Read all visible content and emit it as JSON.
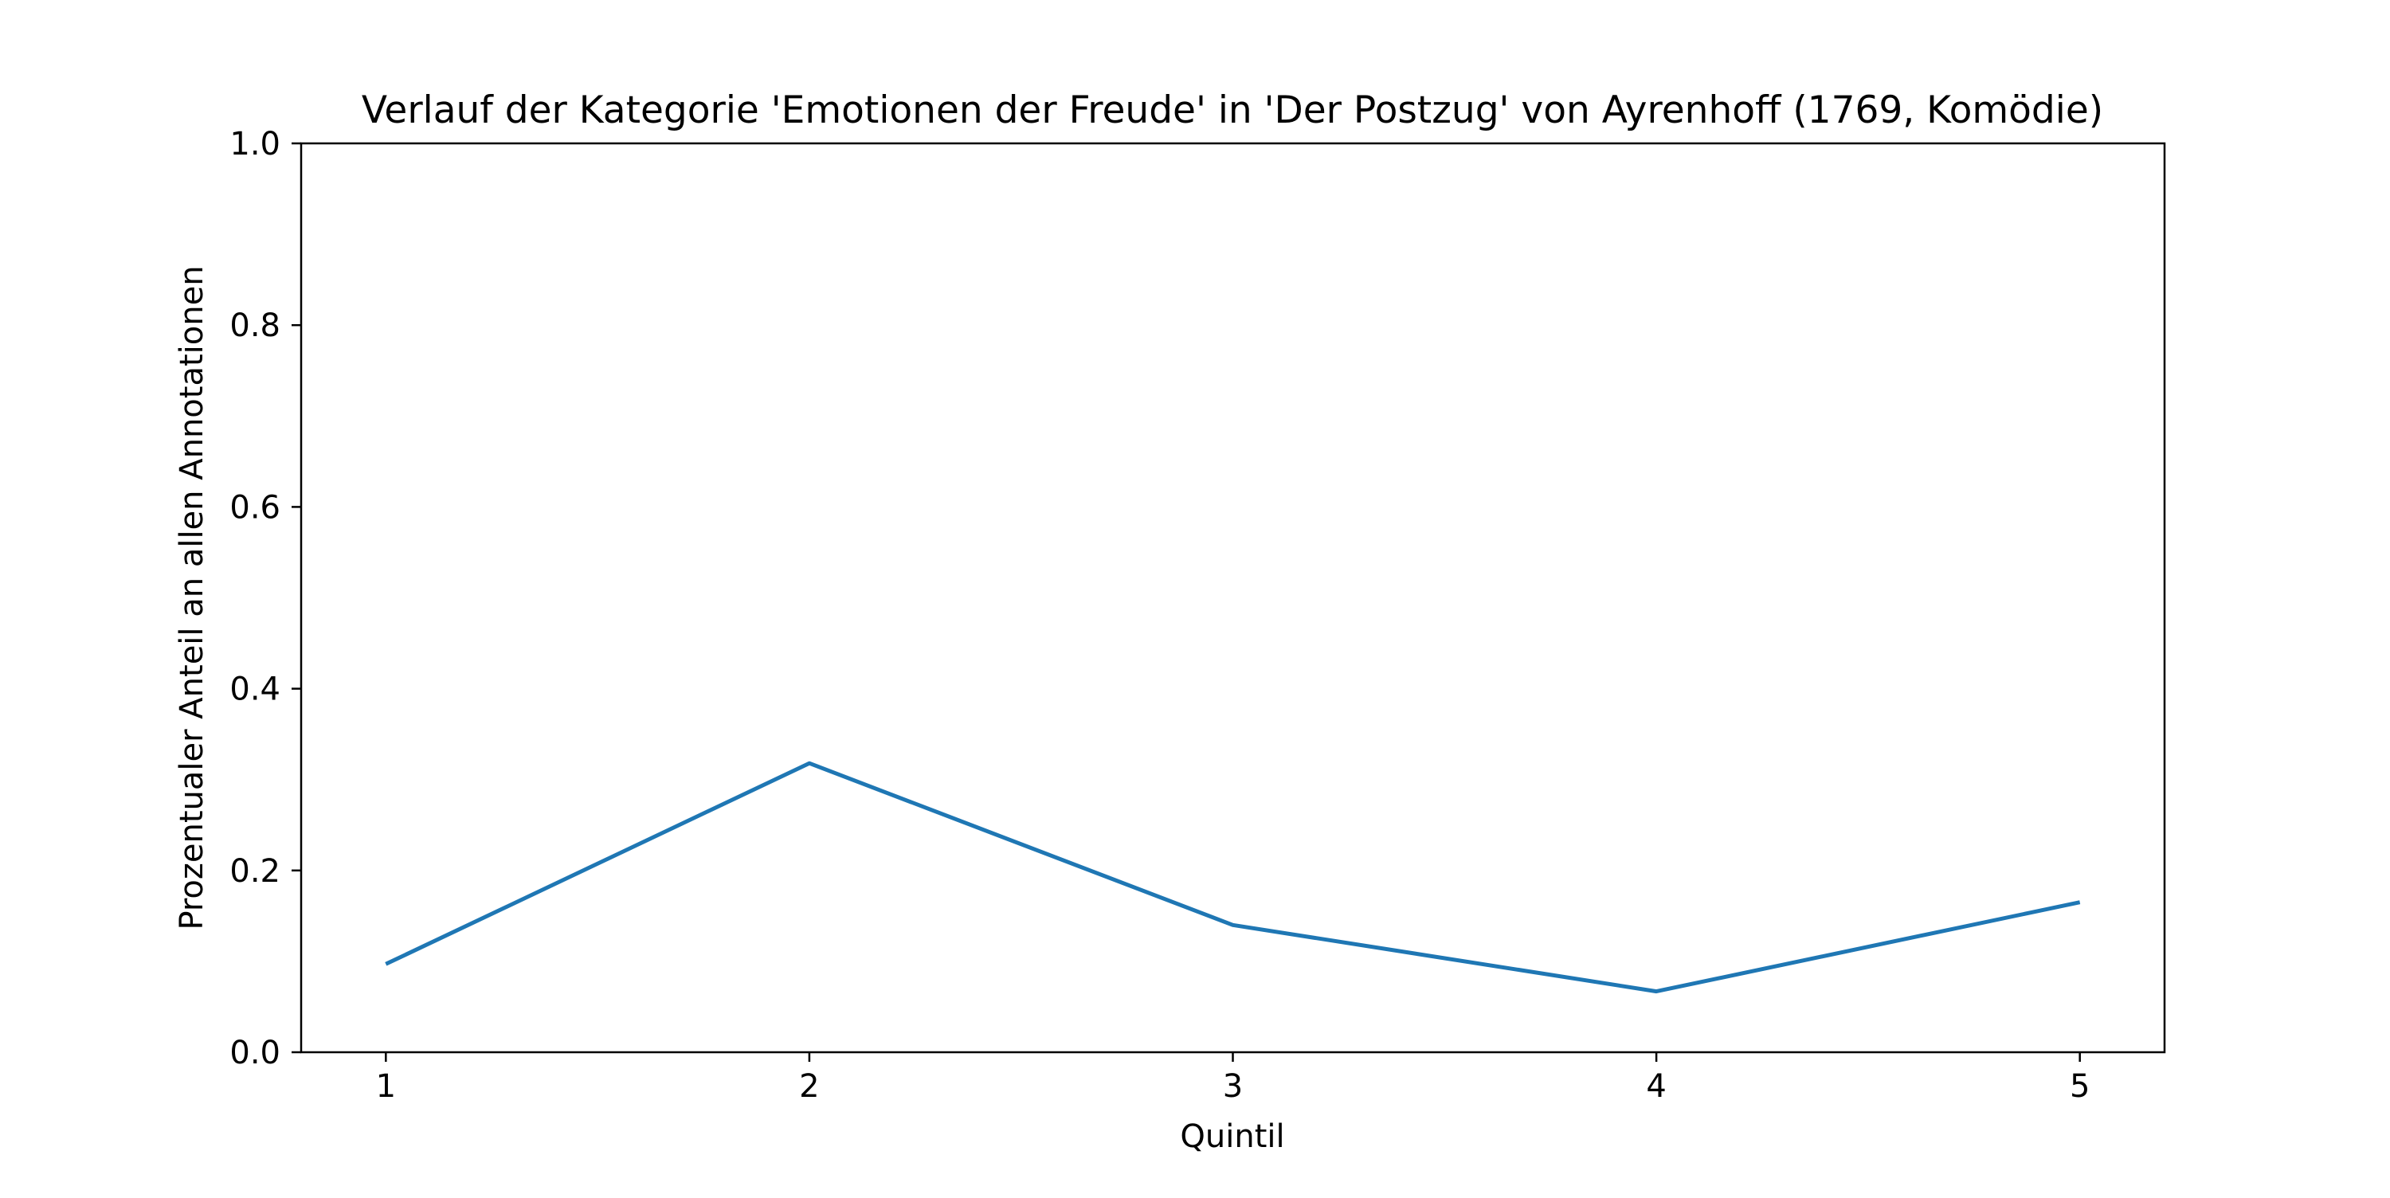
{
  "chart_data": {
    "type": "line",
    "title": "Verlauf der Kategorie 'Emotionen der Freude' in 'Der Postzug' von Ayrenhoff (1769, Komödie)",
    "xlabel": "Quintil",
    "ylabel": "Prozentualer Anteil an allen Annotationen",
    "x": [
      1,
      2,
      3,
      4,
      5
    ],
    "xticks": [
      "1",
      "2",
      "3",
      "4",
      "5"
    ],
    "yticks": [
      "0.0",
      "0.2",
      "0.4",
      "0.6",
      "0.8",
      "1.0"
    ],
    "xlim": [
      0.8,
      5.2
    ],
    "ylim": [
      0,
      1
    ],
    "grid": false,
    "series": [
      {
        "values": [
          0.097,
          0.318,
          0.14,
          0.067,
          0.165
        ],
        "color": "#1f77b4"
      }
    ]
  }
}
